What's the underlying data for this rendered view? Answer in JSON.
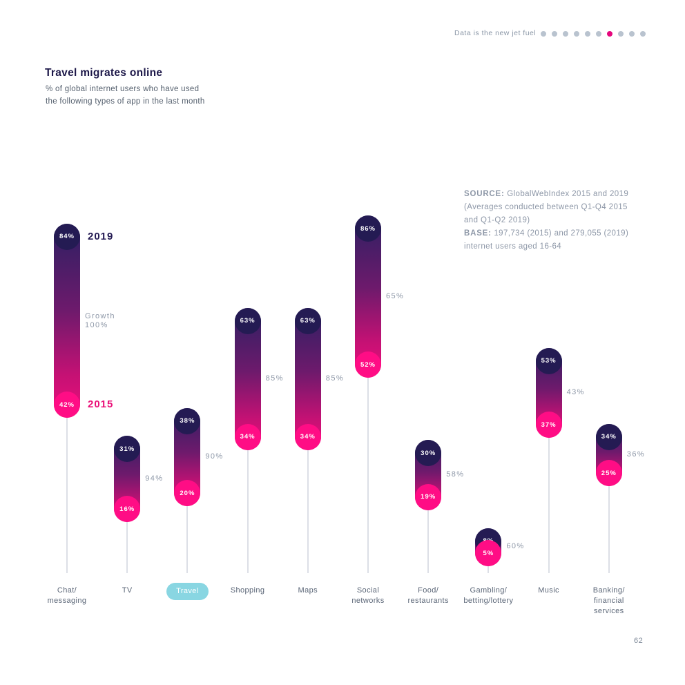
{
  "header": {
    "tagline": "Data is the new jet fuel",
    "dots_total": 10,
    "dots_active_index": 6
  },
  "title_block": {
    "title": "Travel migrates online",
    "subtitle_line1": "% of global internet users who have used",
    "subtitle_line2": "the following types of app in the last month"
  },
  "source_note": {
    "source_label": "SOURCE:",
    "source_rest": " GlobalWebIndex 2015 and 2019",
    "line2": "(Averages conducted between Q1-Q4 2015",
    "line3": "and Q1-Q2 2019)",
    "base_label": "BASE:",
    "base_rest": " 197,734 (2015) and 279,055 (2019)",
    "line5": "internet users aged 16-64"
  },
  "legend": {
    "top_label": "2019",
    "bottom_label": "2015",
    "growth_label": "Growth"
  },
  "page_number": "62",
  "chart_data": {
    "type": "bar",
    "subtype": "dumbbell-gradient-capsule",
    "title": "Travel migrates online",
    "subtitle": "% of global internet users who have used the following types of app in the last month",
    "unit": "%",
    "ylim": [
      0,
      100
    ],
    "grid": false,
    "categories": [
      "Chat/\nmessaging",
      "TV",
      "Travel",
      "Shopping",
      "Maps",
      "Social\nnetworks",
      "Food/\nrestaurants",
      "Gambling/\nbetting/lottery",
      "Music",
      "Banking/\nfinancial\nservices"
    ],
    "series": [
      {
        "name": "2019",
        "values": [
          84,
          31,
          38,
          63,
          63,
          86,
          30,
          8,
          53,
          34
        ]
      },
      {
        "name": "2015",
        "values": [
          42,
          16,
          20,
          34,
          34,
          52,
          19,
          5,
          37,
          25
        ]
      }
    ],
    "growth_percent": [
      100,
      94,
      90,
      85,
      85,
      65,
      58,
      60,
      43,
      36
    ],
    "highlighted_category": "Travel",
    "colors": {
      "top_circle": "#241b53",
      "bottom_circle": "#ff0d85",
      "gradient_top": "#2c2063",
      "gradient_bottom": "#ee0e7c",
      "highlight_pill": "#89d6e2",
      "stem": "#dcdfe6",
      "growth_text": "#8d97a7",
      "accent_pink": "#e5077d"
    }
  }
}
